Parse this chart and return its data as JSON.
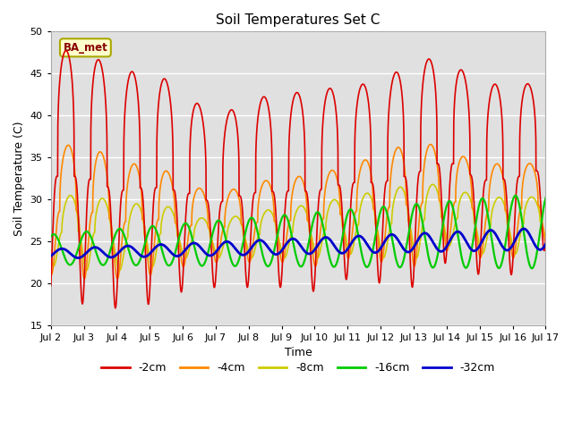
{
  "title": "Soil Temperatures Set C",
  "xlabel": "Time",
  "ylabel": "Soil Temperature (C)",
  "ylim": [
    15,
    50
  ],
  "xtick_labels": [
    "Jul 2",
    "Jul 3",
    "Jul 4",
    "Jul 5",
    "Jul 6",
    "Jul 7",
    "Jul 8",
    "Jul 9",
    "Jul 10",
    "Jul 11",
    "Jul 12",
    "Jul 13",
    "Jul 14",
    "Jul 15",
    "Jul 16",
    "Jul 17"
  ],
  "legend_label": "BA_met",
  "legend_bg": "#ffffcc",
  "legend_border": "#aaa800",
  "line_colors": {
    "-2cm": "#dd0000",
    "-4cm": "#ff8800",
    "-8cm": "#cccc00",
    "-16cm": "#00cc00",
    "-32cm": "#0000cc"
  },
  "series_labels": [
    "-2cm",
    "-4cm",
    "-8cm",
    "-16cm",
    "-32cm"
  ],
  "line_widths": {
    "-2cm": 1.2,
    "-4cm": 1.2,
    "-8cm": 1.2,
    "-16cm": 1.6,
    "-32cm": 2.0
  },
  "day_peaks_2cm": [
    47.5,
    48.0,
    45.0,
    45.5,
    43.0,
    39.5,
    42.0,
    42.5,
    43.0,
    43.5,
    44.0,
    46.5,
    47.0,
    43.5,
    44.0,
    43.5
  ],
  "day_mins_2cm": [
    18.0,
    17.5,
    17.0,
    17.5,
    19.0,
    19.5,
    19.5,
    19.5,
    19.0,
    20.5,
    20.0,
    19.5,
    22.5,
    21.0,
    21.0,
    24.0
  ],
  "day_peaks_4cm": [
    36.0,
    37.0,
    34.0,
    34.5,
    32.0,
    30.5,
    32.0,
    32.5,
    33.0,
    34.0,
    35.5,
    37.0,
    36.0,
    34.0,
    34.5,
    34.0
  ],
  "day_mins_4cm": [
    21.0,
    20.5,
    20.5,
    21.0,
    22.0,
    22.5,
    22.5,
    22.5,
    22.0,
    23.0,
    22.5,
    22.0,
    24.0,
    23.0,
    23.0,
    25.0
  ],
  "day_peaks_8cm": [
    30.0,
    31.0,
    29.0,
    30.0,
    28.0,
    27.5,
    28.5,
    29.0,
    29.5,
    30.5,
    31.0,
    32.0,
    31.5,
    30.0,
    30.5,
    30.0
  ],
  "day_mins_8cm": [
    22.0,
    21.5,
    21.5,
    22.0,
    23.0,
    23.0,
    23.0,
    23.0,
    23.0,
    23.5,
    23.0,
    23.0,
    24.5,
    23.5,
    23.5,
    25.0
  ]
}
